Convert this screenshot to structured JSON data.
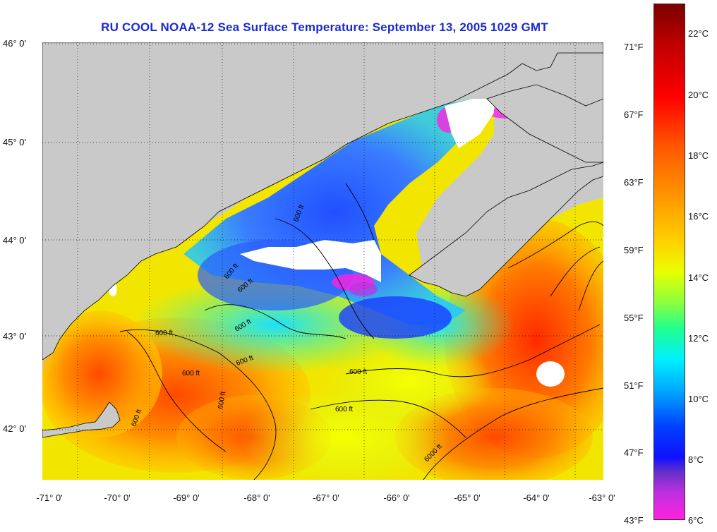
{
  "title": "RU COOL  NOAA-12  Sea Surface Temperature:  September 13, 2005 1029 GMT",
  "latitude_labels": [
    "46° 0'",
    "45° 0'",
    "44° 0'",
    "43° 0'",
    "42° 0'"
  ],
  "longitude_labels": [
    "-71° 0'",
    "-70° 0'",
    "-69° 0'",
    "-68° 0'",
    "-67° 0'",
    "-66° 0'",
    "-65° 0'",
    "-64° 0'",
    "-63° 0'"
  ],
  "fahrenheit_labels": [
    "71°F",
    "67°F",
    "63°F",
    "59°F",
    "55°F",
    "51°F",
    "47°F",
    "43°F"
  ],
  "celsius_labels": [
    "22°C",
    "20°C",
    "18°C",
    "16°C",
    "14°C",
    "12°C",
    "10°C",
    "8°C",
    "6°C"
  ],
  "contour_labels": [
    "600 ft",
    "600 ft",
    "600 ft",
    "600 ft",
    "600 ft",
    "600 ft",
    "600 ft",
    "600 ft",
    "600 ft",
    "600 ft",
    "600 ft",
    "6000 ft"
  ],
  "colors": {
    "title": "#1a2ad0",
    "land": "#c9c9c9",
    "cloud": "#ffffff",
    "coldest": "#ff20e0",
    "warmest": "#7a0000"
  },
  "colorbar": {
    "min_c": 6,
    "max_c": 23,
    "min_f": 43,
    "max_f": 73
  }
}
